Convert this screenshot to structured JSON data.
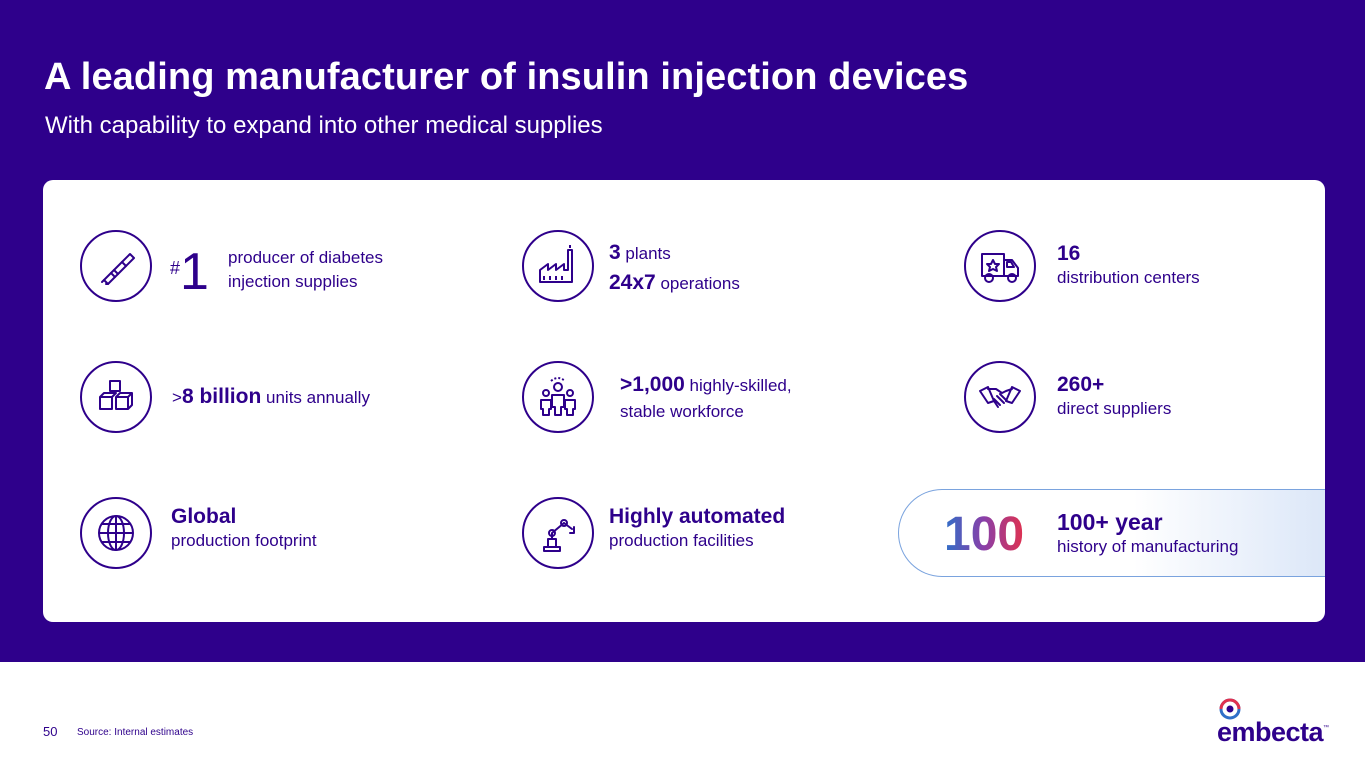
{
  "header": {
    "title": "A leading manufacturer of insulin injection devices",
    "subtitle": "With capability to expand into other medical supplies"
  },
  "stats": {
    "rank": {
      "prefix": "#",
      "number": "1",
      "line1": "producer of diabetes",
      "line2": "injection supplies",
      "icon": "insulin-pen-icon"
    },
    "units": {
      "prefix": ">",
      "value": "8 billion",
      "suffix": " units annually",
      "icon": "boxes-icon"
    },
    "global": {
      "value": "Global",
      "label": "production footprint",
      "icon": "globe-icon"
    },
    "plants": {
      "value": "3",
      "label": " plants",
      "value2": "24x7",
      "label2": " operations",
      "icon": "factory-icon"
    },
    "workforce": {
      "value": ">1,000",
      "label": " highly-skilled,",
      "line2": "stable workforce",
      "icon": "workforce-icon"
    },
    "automated": {
      "value": "Highly automated",
      "label": "production facilities",
      "icon": "robot-arm-icon"
    },
    "distribution": {
      "value": "16",
      "label": "distribution centers",
      "icon": "delivery-truck-icon"
    },
    "suppliers": {
      "value": "260+",
      "label": "direct suppliers",
      "icon": "handshake-icon"
    },
    "history": {
      "badge": "100",
      "value": "100+ year",
      "label": "history of manufacturing"
    }
  },
  "footer": {
    "page_number": "50",
    "source": "Source: Internal estimates",
    "brand": "embecta",
    "trademark": "™"
  },
  "colors": {
    "brand": "#2e008b",
    "accent_red": "#e0314f",
    "accent_blue": "#2f6fc8"
  }
}
